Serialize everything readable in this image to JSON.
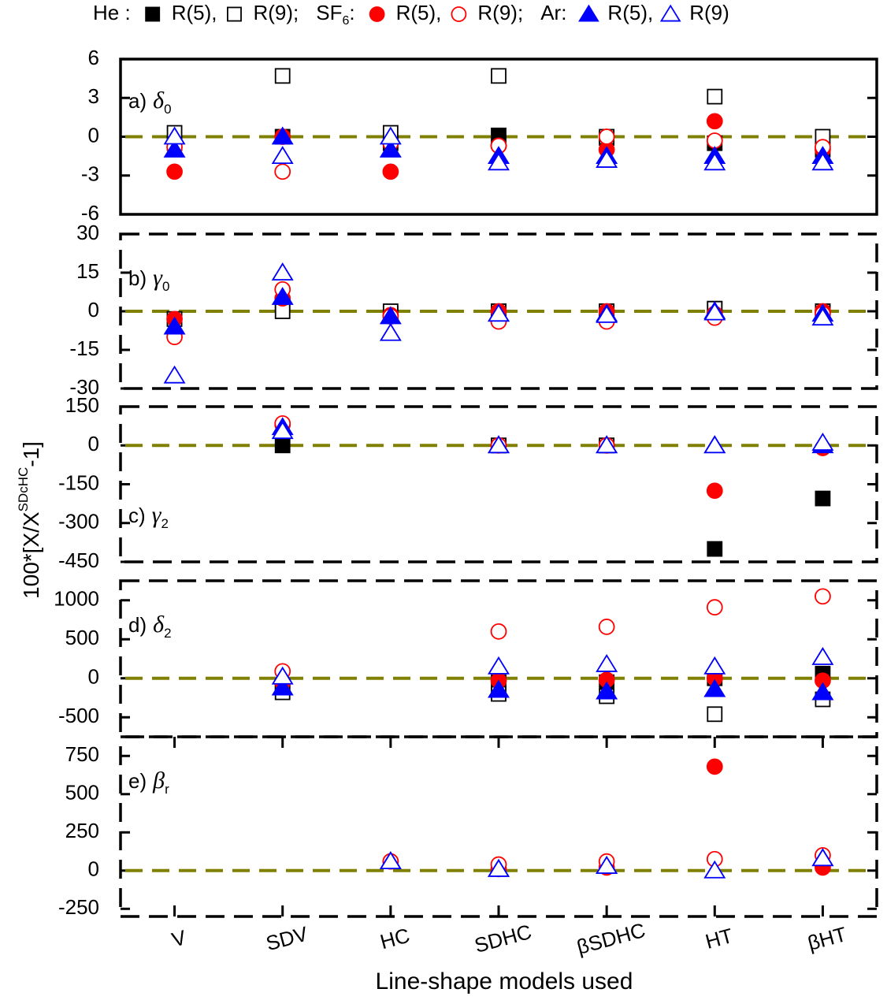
{
  "legend": [
    {
      "label": "He :",
      "entries": [
        {
          "name": "R(5),",
          "color": "#000000",
          "marker": "square",
          "filled": true
        },
        {
          "name": "R(9);",
          "color": "#000000",
          "marker": "square",
          "filled": false
        }
      ]
    },
    {
      "label": "SF",
      "label_sub": "6",
      "label_end": ":",
      "entries": [
        {
          "name": "R(5),",
          "color": "#ff0000",
          "marker": "circle",
          "filled": true
        },
        {
          "name": "R(9);",
          "color": "#ff0000",
          "marker": "circle",
          "filled": false
        }
      ]
    },
    {
      "label": "Ar:",
      "entries": [
        {
          "name": "R(5),",
          "color": "#0000ff",
          "marker": "triangle",
          "filled": true
        },
        {
          "name": "R(9)",
          "color": "#0000ff",
          "marker": "triangle",
          "filled": false
        }
      ]
    }
  ],
  "y_label": [
    "100*[X/X",
    "SDcHC",
    "-1]"
  ],
  "x_label": "Line-shape models used",
  "categories": [
    "V",
    "SDV",
    "HC",
    "SDHC",
    "βSDHC",
    "HT",
    "βHT"
  ],
  "chart_data": [
    {
      "type": "scatter",
      "panel_label": "a)",
      "symbol": "δ",
      "symbol_sub": "0",
      "ylim": [
        -6,
        6
      ],
      "yticks": [
        -6,
        -3,
        0,
        3,
        6
      ],
      "reference_line": 0,
      "frame": "solid",
      "series": [
        {
          "values": [
            -0.5,
            0,
            -0.5,
            0.1,
            -0.1,
            -0.5,
            -1
          ]
        },
        {
          "values": [
            0.3,
            4.7,
            0.3,
            4.7,
            0,
            3.1,
            0
          ]
        },
        {
          "values": [
            -2.7,
            0,
            -2.7,
            -0.7,
            -1,
            1.2,
            -1
          ]
        },
        {
          "values": [
            -0.8,
            -2.7,
            -0.5,
            -0.7,
            0,
            -0.3,
            -0.8
          ]
        },
        {
          "values": [
            -1,
            0,
            -1,
            -1.5,
            -1.5,
            -1.5,
            -1.5
          ]
        },
        {
          "values": [
            0,
            -1.5,
            0,
            -2,
            -1.8,
            -2,
            -2
          ]
        }
      ]
    },
    {
      "type": "scatter",
      "panel_label": "b)",
      "symbol": "γ",
      "symbol_sub": "0",
      "ylim": [
        -30,
        30
      ],
      "yticks": [
        -30,
        -15,
        0,
        15,
        30
      ],
      "reference_line": 0,
      "frame": "dashed",
      "series": [
        {
          "values": [
            -3,
            3,
            -1,
            0,
            0,
            1,
            0
          ]
        },
        {
          "values": [
            -3,
            0,
            0,
            0,
            0,
            1,
            0
          ]
        },
        {
          "values": [
            -3,
            5,
            -1.5,
            0,
            0,
            -1,
            0
          ]
        },
        {
          "values": [
            -10,
            8.5,
            -2,
            -4,
            -4,
            -2.5,
            -1
          ]
        },
        {
          "values": [
            -6,
            5.5,
            -2,
            -1,
            -1,
            0,
            -1
          ]
        },
        {
          "values": [
            -25,
            15,
            -8.5,
            -1,
            -1.5,
            -0.5,
            -2.5
          ]
        }
      ]
    },
    {
      "type": "scatter",
      "panel_label": "c)",
      "symbol": "γ",
      "symbol_sub": "2",
      "ylim": [
        -450,
        150
      ],
      "yticks": [
        -450,
        -300,
        -150,
        0,
        150
      ],
      "reference_line": 0,
      "frame": "dashed",
      "series": [
        {
          "values": [
            null,
            0,
            null,
            0,
            0,
            -400,
            -205
          ]
        },
        {
          "values": [
            null,
            null,
            null,
            0,
            0,
            null,
            null
          ]
        },
        {
          "values": [
            null,
            80,
            null,
            0,
            0,
            -175,
            -10
          ]
        },
        {
          "values": [
            null,
            85,
            null,
            0,
            0,
            null,
            null
          ]
        },
        {
          "values": [
            null,
            70,
            null,
            0,
            0,
            0,
            0
          ]
        },
        {
          "values": [
            null,
            55,
            null,
            0,
            0,
            0,
            10
          ]
        }
      ]
    },
    {
      "type": "scatter",
      "panel_label": "d)",
      "symbol": "δ",
      "symbol_sub": "2",
      "ylim": [
        -750,
        1250
      ],
      "yticks": [
        -500,
        0,
        500,
        1000
      ],
      "reference_line": 0,
      "frame": "dashed",
      "series": [
        {
          "values": [
            null,
            -100,
            null,
            -50,
            -50,
            0,
            60
          ]
        },
        {
          "values": [
            null,
            -180,
            null,
            -200,
            -230,
            -460,
            -270
          ]
        },
        {
          "values": [
            null,
            -50,
            null,
            -30,
            -20,
            0,
            -30
          ]
        },
        {
          "values": [
            null,
            90,
            null,
            600,
            660,
            910,
            1050
          ]
        },
        {
          "values": [
            null,
            -120,
            null,
            -150,
            -170,
            -140,
            -180
          ]
        },
        {
          "values": [
            null,
            20,
            null,
            150,
            180,
            150,
            270
          ]
        }
      ]
    },
    {
      "type": "scatter",
      "panel_label": "e)",
      "symbol": "β",
      "symbol_sub": "r",
      "ylim": [
        -300,
        875
      ],
      "yticks": [
        -250,
        0,
        250,
        500,
        750
      ],
      "reference_line": 0,
      "frame": "dashed",
      "series": [
        {
          "values": [
            null,
            null,
            null,
            null,
            null,
            null,
            null
          ]
        },
        {
          "values": [
            null,
            null,
            null,
            null,
            null,
            null,
            null
          ]
        },
        {
          "values": [
            null,
            null,
            60,
            10,
            20,
            680,
            20
          ]
        },
        {
          "values": [
            null,
            null,
            60,
            40,
            60,
            75,
            100
          ]
        },
        {
          "values": [
            null,
            null,
            60,
            10,
            30,
            null,
            80
          ]
        },
        {
          "values": [
            null,
            null,
            60,
            10,
            30,
            0,
            80
          ]
        }
      ]
    }
  ]
}
